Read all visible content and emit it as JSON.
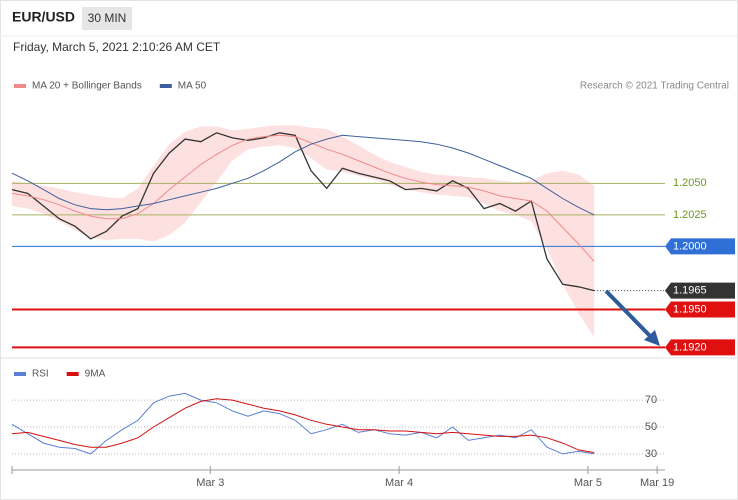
{
  "header": {
    "symbol": "EUR/USD",
    "interval": "30 MIN",
    "timestamp": "Friday, March 5, 2021 2:10:26 AM CET",
    "credit": "Research © 2021 Trading Central"
  },
  "chart_data": [
    {
      "type": "line",
      "x": [
        0,
        1,
        2,
        3,
        4,
        5,
        6,
        7,
        8,
        9,
        10,
        11,
        12,
        13,
        14,
        15,
        16,
        17,
        18,
        19,
        20,
        21,
        22,
        23,
        24,
        25,
        26,
        27,
        28,
        29,
        30,
        31,
        32,
        33,
        34,
        35,
        36,
        37
      ],
      "xlim": [
        0,
        41.5
      ],
      "ylim": [
        1.1914,
        1.2116
      ],
      "series": [
        {
          "color": "#333333",
          "values": [
            1.2045,
            1.2042,
            1.2032,
            1.2022,
            1.2016,
            1.2006,
            1.2012,
            1.2024,
            1.203,
            1.2058,
            1.2074,
            1.2085,
            1.2083,
            1.209,
            1.2086,
            1.2084,
            1.2086,
            1.209,
            1.2088,
            1.206,
            1.2046,
            1.2062,
            1.2058,
            1.2055,
            1.2052,
            1.2045,
            1.2046,
            1.2044,
            1.2052,
            1.2046,
            1.203,
            1.2034,
            1.2028,
            1.2036,
            1.199,
            1.197,
            1.1968,
            1.1965
          ]
        },
        {
          "name": "MA 20 + Bollinger Bands",
          "color": "#f08a8a",
          "values": [
            1.2042,
            1.204,
            1.2037,
            1.2033,
            1.2028,
            1.2024,
            1.2022,
            1.2022,
            1.2026,
            1.2034,
            1.2045,
            1.2055,
            1.2065,
            1.2073,
            1.208,
            1.2085,
            1.2087,
            1.2088,
            1.2087,
            1.2082,
            1.2077,
            1.2073,
            1.2068,
            1.2063,
            1.2058,
            1.2054,
            1.2051,
            1.2049,
            1.2048,
            1.2047,
            1.2044,
            1.204,
            1.2038,
            1.2036,
            1.2028,
            1.2015,
            1.2002,
            1.1988
          ],
          "band_color": "#fcd9d9",
          "upper": [
            1.2052,
            1.205,
            1.2048,
            1.2046,
            1.2043,
            1.2041,
            1.2039,
            1.2038,
            1.2046,
            1.2064,
            1.2081,
            1.2091,
            1.2095,
            1.2095,
            1.2092,
            1.2093,
            1.2095,
            1.2096,
            1.2096,
            1.2094,
            1.2093,
            1.2087,
            1.208,
            1.2073,
            1.2067,
            1.2063,
            1.2059,
            1.2057,
            1.2056,
            1.2055,
            1.2054,
            1.2052,
            1.2051,
            1.2052,
            1.2058,
            1.206,
            1.2057,
            1.2048
          ],
          "lower": [
            1.2032,
            1.203,
            1.2026,
            1.202,
            1.2013,
            1.2007,
            1.2005,
            1.2006,
            1.2006,
            1.2004,
            1.2009,
            1.2019,
            1.2035,
            1.2051,
            1.2068,
            1.2077,
            1.2079,
            1.208,
            1.2078,
            1.207,
            1.2061,
            1.2059,
            1.2056,
            1.2053,
            1.2049,
            1.2045,
            1.2043,
            1.2041,
            1.204,
            1.2039,
            1.2034,
            1.2028,
            1.2025,
            1.202,
            1.1998,
            1.197,
            1.1947,
            1.1928
          ]
        },
        {
          "name": "MA 50",
          "color": "#3d5f9e",
          "values": [
            1.2058,
            1.2052,
            1.2045,
            1.2038,
            1.2033,
            1.203,
            1.2029,
            1.203,
            1.2032,
            1.2034,
            1.2037,
            1.204,
            1.2043,
            1.2046,
            1.205,
            1.2054,
            1.206,
            1.2067,
            1.2075,
            1.2081,
            1.2085,
            1.2088,
            1.2087,
            1.2086,
            1.2085,
            1.2084,
            1.2083,
            1.2081,
            1.2078,
            1.2074,
            1.2069,
            1.2064,
            1.2059,
            1.2054,
            1.2046,
            1.2038,
            1.2031,
            1.2025
          ]
        }
      ],
      "levels": [
        {
          "value": 1.205,
          "label": "1.2050",
          "color": "#a8b060",
          "tag": false,
          "dotted": false
        },
        {
          "value": 1.2025,
          "label": "1.2025",
          "color": "#a8b060",
          "tag": false,
          "dotted": false
        },
        {
          "value": 1.2,
          "label": "1.2000",
          "color": "#2f6fd6",
          "tag": true,
          "dotted": false
        },
        {
          "value": 1.1965,
          "label": "1.1965",
          "color": "#333333",
          "tag": true,
          "dotted": true
        },
        {
          "value": 1.195,
          "label": "1.1950",
          "color": "#e01010",
          "tag": true,
          "dotted": false
        },
        {
          "value": 1.192,
          "label": "1.1920",
          "color": "#e01010",
          "tag": true,
          "dotted": false
        }
      ]
    },
    {
      "type": "line",
      "x": [
        0,
        1,
        2,
        3,
        4,
        5,
        6,
        7,
        8,
        9,
        10,
        11,
        12,
        13,
        14,
        15,
        16,
        17,
        18,
        19,
        20,
        21,
        22,
        23,
        24,
        25,
        26,
        27,
        28,
        29,
        30,
        31,
        32,
        33,
        34,
        35,
        36,
        37
      ],
      "xlim": [
        0,
        41.5
      ],
      "xticks": [
        {
          "value": 12.6,
          "label": "Mar 3"
        },
        {
          "value": 24.6,
          "label": "Mar 4"
        },
        {
          "value": 36.6,
          "label": "Mar 5"
        },
        {
          "value": 41,
          "label": "Mar 19"
        }
      ],
      "ylim": [
        21,
        79
      ],
      "yticks": [
        30,
        50,
        70
      ],
      "grid": true,
      "series": [
        {
          "name": "RSI",
          "color": "#5b7fd6",
          "values": [
            52,
            45,
            38,
            35,
            34,
            30,
            40,
            48,
            55,
            68,
            73,
            75,
            70,
            68,
            62,
            58,
            62,
            60,
            55,
            45,
            48,
            52,
            46,
            48,
            45,
            44,
            46,
            42,
            50,
            40,
            42,
            44,
            42,
            48,
            35,
            30,
            32,
            30
          ]
        },
        {
          "name": "9MA",
          "color": "#d41010",
          "values": [
            45,
            46,
            43,
            40,
            37,
            35,
            35,
            38,
            42,
            50,
            57,
            64,
            69,
            71,
            70,
            67,
            64,
            62,
            59,
            55,
            52,
            50,
            48,
            48,
            47,
            47,
            46,
            45,
            46,
            45,
            44,
            43,
            43,
            44,
            42,
            38,
            33,
            31
          ]
        }
      ]
    }
  ]
}
